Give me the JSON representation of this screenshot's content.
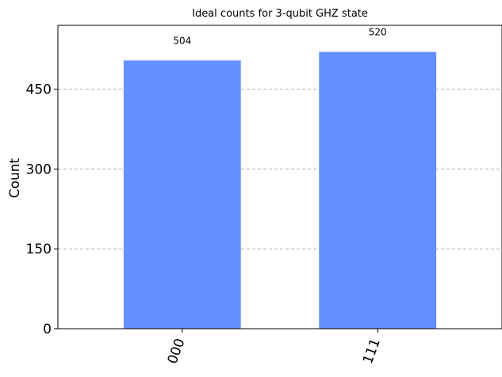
{
  "chart_data": {
    "type": "bar",
    "title": "Ideal counts for 3-qubit GHZ state",
    "xlabel": "",
    "ylabel": "Count",
    "categories": [
      "000",
      "111"
    ],
    "values": [
      504,
      520
    ],
    "data_labels": [
      "504",
      "520"
    ],
    "ylim": [
      0,
      570
    ],
    "yticks": [
      0,
      150,
      300,
      450
    ],
    "ytick_labels": [
      "0",
      "150",
      "300",
      "450"
    ],
    "xtick_rotation_deg": 70,
    "grid": "y-dashed",
    "bar_color": "#648fff",
    "legend": "none"
  }
}
